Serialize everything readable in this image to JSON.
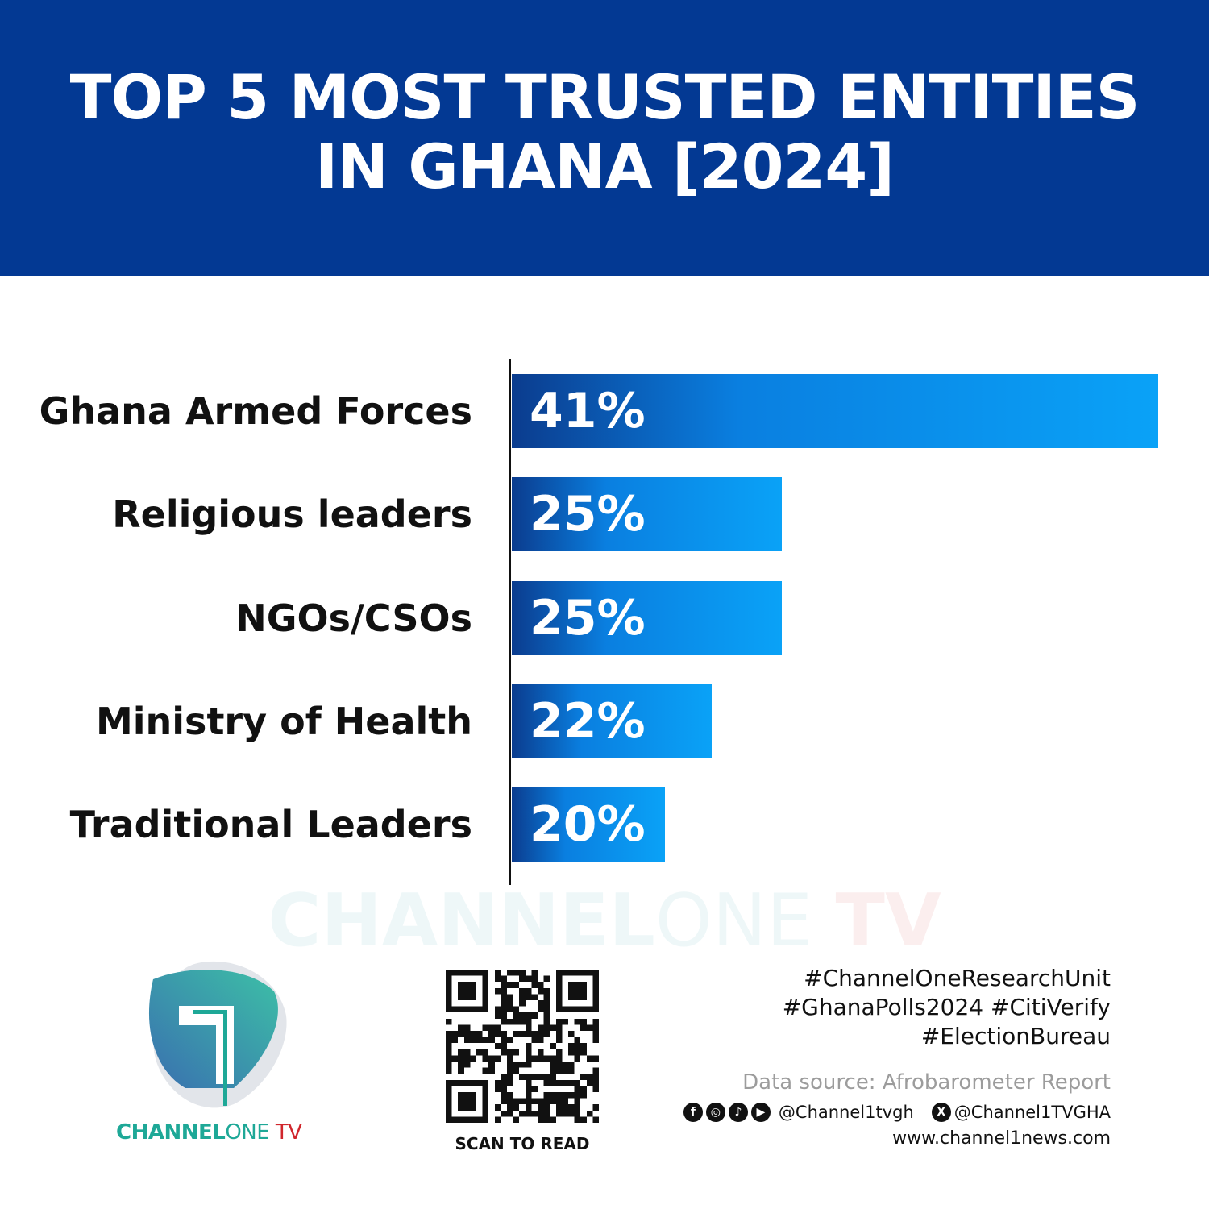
{
  "header": {
    "title_line1": "TOP 5 MOST TRUSTED ENTITIES",
    "title_line2": "IN GHANA [2024]",
    "background": "#033993"
  },
  "chart_data": {
    "type": "bar",
    "orientation": "horizontal",
    "categories": [
      "Ghana Armed Forces",
      "Religious leaders",
      "NGOs/CSOs",
      "Ministry of Health",
      "Traditional Leaders"
    ],
    "values": [
      41,
      25,
      25,
      22,
      20
    ],
    "data_labels": [
      "41%",
      "25%",
      "25%",
      "22%",
      "20%"
    ],
    "unit": "%",
    "xlim": [
      13.5,
      41
    ],
    "grid": false,
    "bar_colors": [
      "#0b3c8e",
      "#0aa2f7"
    ]
  },
  "watermark": {
    "text_a": "CHANNEL",
    "text_b": "ONE ",
    "text_c": "TV"
  },
  "logo": {
    "text_a": "CHANNEL",
    "text_b": "ONE",
    "text_c": " TV",
    "colors": [
      "#1ea897",
      "#3a72b0",
      "#d0262c"
    ]
  },
  "qr": {
    "caption": "SCAN TO READ"
  },
  "footer": {
    "hashtags": [
      "#ChannelOneResearchUnit",
      "#GhanaPolls2024 #CitiVerify",
      "#ElectionBureau"
    ],
    "source": "Data source: Afrobarometer Report",
    "social_icons": [
      "facebook-icon",
      "instagram-icon",
      "tiktok-icon",
      "youtube-icon"
    ],
    "handle1": "@Channel1tvgh",
    "handle2": "@Channel1TVGHA",
    "website": "www.channel1news.com"
  }
}
